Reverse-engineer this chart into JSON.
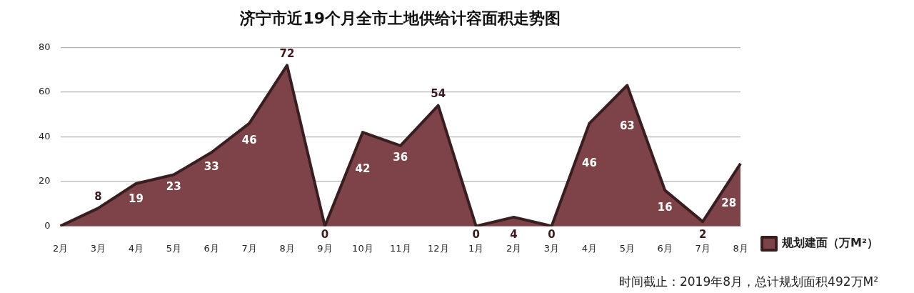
{
  "chart_data": {
    "type": "area",
    "title": "济宁市近19个月全市土地供给计容面积走势图",
    "categories": [
      "2月",
      "3月",
      "4月",
      "5月",
      "6月",
      "7月",
      "8月",
      "9月",
      "10月",
      "11月",
      "12月",
      "1月",
      "2月",
      "3月",
      "4月",
      "5月",
      "6月",
      "7月",
      "8月"
    ],
    "series": [
      {
        "name": "规划建面（万M²）",
        "color": "#7e4349",
        "values": [
          0,
          8,
          19,
          23,
          33,
          46,
          72,
          0,
          42,
          36,
          54,
          0,
          4,
          0,
          46,
          63,
          16,
          2,
          28
        ],
        "value_labels": [
          null,
          "8",
          "19",
          "23",
          "33",
          "46",
          "72",
          "0",
          "42",
          "36",
          "54",
          "0",
          "4",
          "0",
          "46",
          "63",
          "16",
          "2",
          "28"
        ]
      }
    ],
    "ylim": [
      0,
      80
    ],
    "yticks": [
      0,
      20,
      40,
      60,
      80
    ],
    "grid": "y",
    "legend": "right",
    "marker": "none",
    "annotations": [
      "时间截止：2019年8月，总计规划面积492万M²"
    ]
  }
}
